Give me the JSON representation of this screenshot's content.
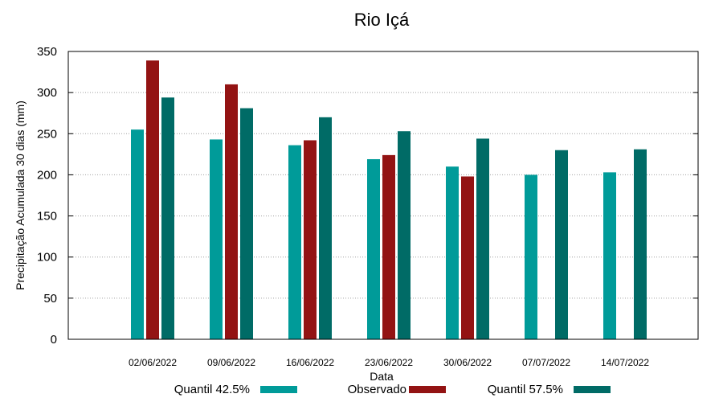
{
  "chart_data": {
    "type": "bar",
    "title": "Rio Içá",
    "xlabel": "Data",
    "ylabel": "Precipitação Acumulada 30 dias (mm)",
    "ylim": [
      0,
      350
    ],
    "yticks": [
      0,
      50,
      100,
      150,
      200,
      250,
      300,
      350
    ],
    "grid": true,
    "legend_position": "bottom",
    "categories": [
      "02/06/2022",
      "09/06/2022",
      "16/06/2022",
      "23/06/2022",
      "30/06/2022",
      "07/07/2022",
      "14/07/2022"
    ],
    "series": [
      {
        "name": "Quantil 42.5%",
        "color": "#009b99",
        "values": [
          255,
          243,
          236,
          219,
          210,
          200,
          203
        ]
      },
      {
        "name": "Observado",
        "color": "#931313",
        "values": [
          339,
          310,
          242,
          224,
          198,
          null,
          null
        ]
      },
      {
        "name": "Quantil 57.5%",
        "color": "#006b66",
        "values": [
          294,
          281,
          270,
          253,
          244,
          230,
          231
        ]
      }
    ]
  }
}
